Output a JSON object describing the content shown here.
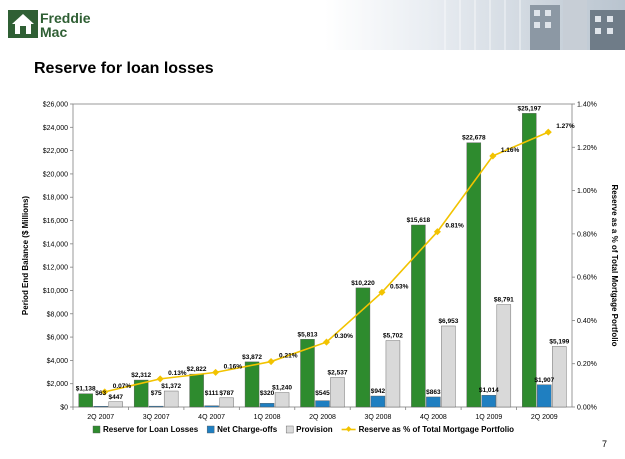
{
  "header": {
    "brand_line1": "Freddie",
    "brand_line2": "Mac",
    "page_number": "7"
  },
  "colors": {
    "reserve": "#2e8b2e",
    "netco": "#1f7fc1",
    "provision": "#d9d9d9",
    "ratio_line": "#f2c300",
    "logo_green": "#2f5f34"
  },
  "chart_data": {
    "type": "bar",
    "title": "Reserve for loan losses",
    "categories": [
      "2Q 2007",
      "3Q 2007",
      "4Q 2007",
      "1Q 2008",
      "2Q 2008",
      "3Q 2008",
      "4Q 2008",
      "1Q 2009",
      "2Q 2009"
    ],
    "ylabel": "Period End Balance ($ Millions)",
    "y2label": "Reserve as a % of Total Mortgage Portfolio",
    "ylim": [
      0,
      26000
    ],
    "y_ticks": [
      "$0",
      "$2,000",
      "$4,000",
      "$6,000",
      "$8,000",
      "$10,000",
      "$12,000",
      "$14,000",
      "$16,000",
      "$18,000",
      "$20,000",
      "$22,000",
      "$24,000",
      "$26,000"
    ],
    "y2lim": [
      0,
      1.4
    ],
    "y2_ticks": [
      "0.00%",
      "0.20%",
      "0.40%",
      "0.60%",
      "0.80%",
      "1.00%",
      "1.20%",
      "1.40%"
    ],
    "legend_position": "bottom",
    "series": [
      {
        "name": "Reserve for Loan Losses",
        "kind": "bar",
        "values": [
          1138,
          2312,
          2822,
          3872,
          5813,
          10220,
          15618,
          22678,
          25197
        ],
        "labels": [
          "$1,138",
          "$2,312",
          "$2,822",
          "$3,872",
          "$5,813",
          "$10,220",
          "$15,618",
          "$22,678",
          "$25,197"
        ]
      },
      {
        "name": "Net Charge-offs",
        "kind": "bar",
        "values": [
          63,
          75,
          111,
          320,
          545,
          942,
          863,
          1014,
          1907
        ],
        "labels": [
          "$63",
          "$75",
          "$111",
          "$320",
          "$545",
          "$942",
          "$863",
          "$1,014",
          "$1,907"
        ]
      },
      {
        "name": "Provision",
        "kind": "bar",
        "values": [
          447,
          1372,
          787,
          1240,
          2537,
          5702,
          6953,
          8791,
          5199
        ],
        "labels": [
          "$447",
          "$1,372",
          "$787",
          "$1,240",
          "$2,537",
          "$5,702",
          "$6,953",
          "$8,791",
          "$5,199"
        ]
      },
      {
        "name": "Reserve as % of Total Mortgage Portfolio",
        "kind": "line",
        "axis": "right",
        "values": [
          0.07,
          0.13,
          0.16,
          0.21,
          0.3,
          0.53,
          0.81,
          1.16,
          1.27
        ],
        "labels": [
          "0.07%",
          "0.13%",
          "0.16%",
          "0.21%",
          "0.30%",
          "0.53%",
          "0.81%",
          "1.16%",
          "1.27%"
        ]
      }
    ]
  }
}
